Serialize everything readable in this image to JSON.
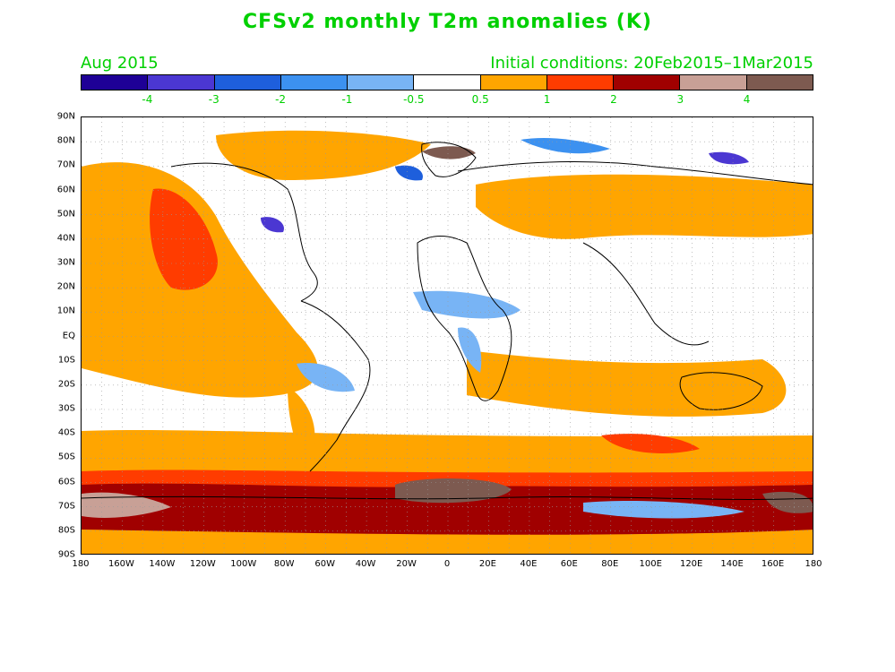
{
  "title": "CFSv2 monthly T2m anomalies (K)",
  "forecast_month": "Aug 2015",
  "initial_conditions": "Initial conditions: 20Feb2015–1Mar2015",
  "colorbar": {
    "colors": [
      "#1e0096",
      "#4b37d2",
      "#1e5fdc",
      "#3c91f0",
      "#78b4f5",
      "#ffffff",
      "#ffa500",
      "#ff3c00",
      "#a00000",
      "#c8a096",
      "#7d5a50"
    ],
    "labels": [
      "-4",
      "-3",
      "-2",
      "-1",
      "-0.5",
      "0.5",
      "1",
      "2",
      "3",
      "4"
    ]
  },
  "axes": {
    "lat_labels": [
      "90N",
      "80N",
      "70N",
      "60N",
      "50N",
      "40N",
      "30N",
      "20N",
      "10N",
      "EQ",
      "10S",
      "20S",
      "30S",
      "40S",
      "50S",
      "60S",
      "70S",
      "80S",
      "90S"
    ],
    "lon_labels": [
      "180",
      "160W",
      "140W",
      "120W",
      "100W",
      "80W",
      "60W",
      "40W",
      "20W",
      "0",
      "20E",
      "40E",
      "60E",
      "80E",
      "100E",
      "120E",
      "140E",
      "160E",
      "180"
    ]
  }
}
